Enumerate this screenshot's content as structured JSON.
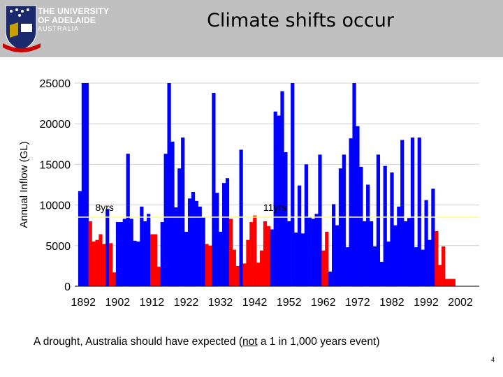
{
  "slide": {
    "title": "Climate shifts occur",
    "caption_pre": "A drought, Australia should have expected (",
    "caption_underlined": "not",
    "caption_post": " a 1 in 1,000 years event)",
    "page_number": "4"
  },
  "logo": {
    "line1": "THE UNIVERSITY",
    "line2": "OF ADELAIDE",
    "line3": "AUSTRALIA"
  },
  "colors": {
    "wet": "#0000ff",
    "dry": "#ff0000",
    "header_bg": "#c0c0c0",
    "threshold": "#ffff80"
  },
  "chart_data": {
    "type": "bar",
    "xlabel": "",
    "ylabel": "Annual Inflow (GL)",
    "ylim": [
      0,
      25000
    ],
    "yticks": [
      0,
      5000,
      10000,
      15000,
      20000,
      25000
    ],
    "xlim": [
      1890,
      2008
    ],
    "xticks": [
      1892,
      1902,
      1912,
      1922,
      1932,
      1942,
      1952,
      1962,
      1972,
      1982,
      1992,
      2002
    ],
    "threshold": 8500,
    "grid": true,
    "start_year": 1891,
    "values": [
      11700,
      25000,
      25000,
      8000,
      5500,
      5700,
      6400,
      5200,
      9500,
      5300,
      1700,
      7900,
      7900,
      8300,
      16300,
      8300,
      5600,
      5500,
      9800,
      8000,
      8900,
      6400,
      6400,
      2400,
      7900,
      16300,
      25000,
      17800,
      9700,
      14500,
      18300,
      6700,
      10800,
      11600,
      10500,
      9800,
      8500,
      5200,
      5000,
      23800,
      11500,
      6700,
      12700,
      13300,
      8300,
      4500,
      2500,
      16800,
      2800,
      5700,
      7900,
      8700,
      2900,
      4400,
      8000,
      7400,
      7000,
      21500,
      21000,
      24000,
      16500,
      8000,
      25000,
      6600,
      12400,
      6500,
      15000,
      8500,
      8300,
      8900,
      16200,
      4400,
      6700,
      1800,
      10100,
      7500,
      14500,
      16200,
      4800,
      18200,
      25000,
      19700,
      14700,
      8000,
      12500,
      8000,
      4900,
      16200,
      3000,
      14800,
      5500,
      14000,
      7500,
      9800,
      18000,
      8000,
      8400,
      18300,
      4800,
      18300,
      4500,
      10600,
      5700,
      12000,
      6800,
      2600,
      4900,
      900,
      900,
      900
    ],
    "dry": [
      0,
      0,
      0,
      1,
      1,
      1,
      1,
      1,
      0,
      1,
      1,
      0,
      0,
      0,
      0,
      0,
      0,
      0,
      0,
      0,
      0,
      1,
      1,
      1,
      0,
      0,
      0,
      0,
      0,
      0,
      0,
      0,
      0,
      0,
      0,
      0,
      0,
      1,
      1,
      0,
      0,
      0,
      0,
      0,
      1,
      1,
      1,
      0,
      1,
      1,
      1,
      1,
      1,
      1,
      1,
      1,
      0,
      0,
      0,
      0,
      0,
      0,
      0,
      0,
      0,
      0,
      0,
      0,
      0,
      0,
      0,
      1,
      1,
      0,
      0,
      0,
      0,
      0,
      0,
      0,
      0,
      0,
      0,
      0,
      0,
      0,
      0,
      0,
      0,
      0,
      0,
      0,
      0,
      0,
      0,
      0,
      0,
      0,
      0,
      0,
      0,
      0,
      0,
      0,
      1,
      1,
      1,
      1,
      1,
      1
    ],
    "annotations": [
      {
        "text": "8yrs",
        "year": 1896,
        "value": 9800
      },
      {
        "text": "11yrs",
        "year": 1945,
        "value": 9800
      }
    ]
  }
}
